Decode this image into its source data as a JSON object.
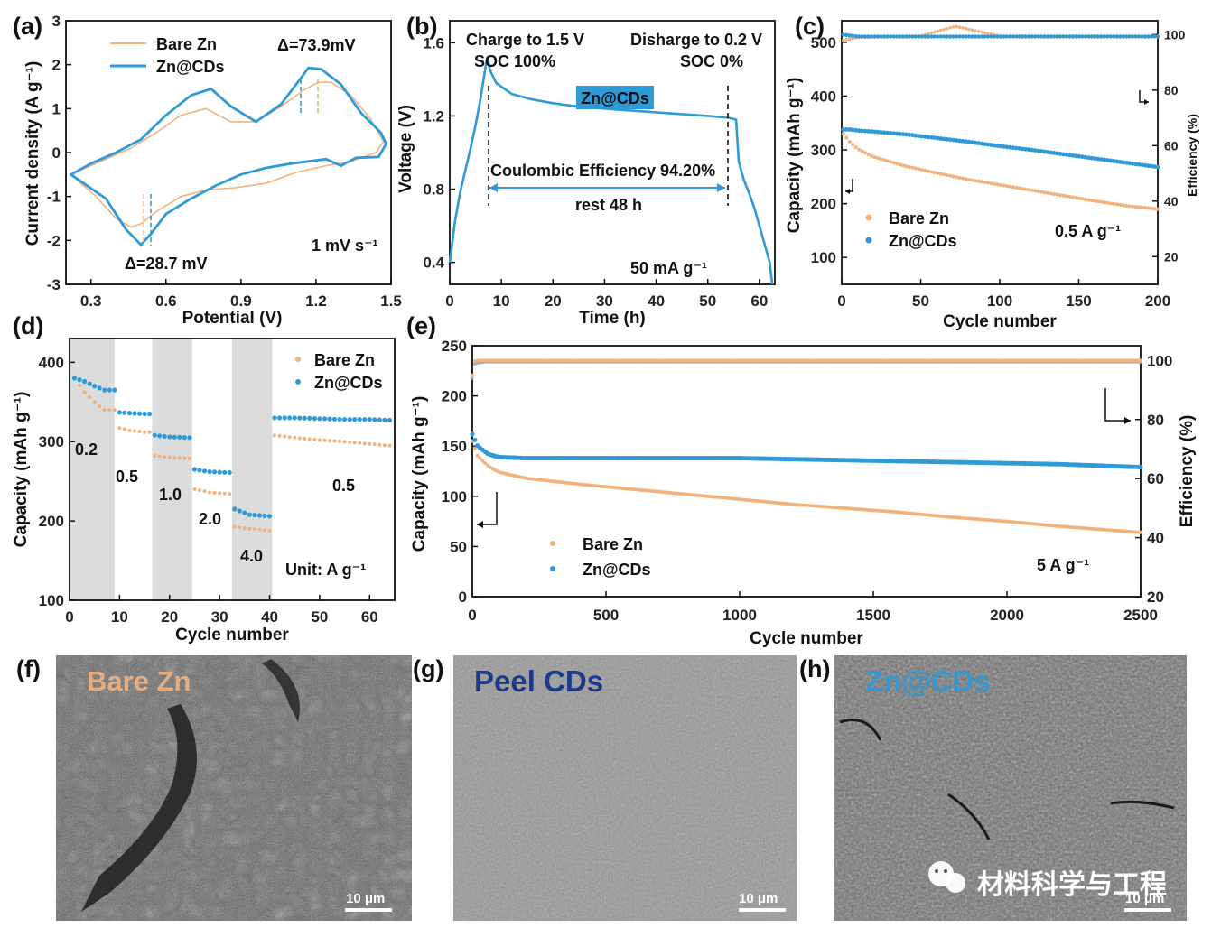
{
  "colors": {
    "bare": "#f2b27e",
    "cds": "#2f9ad8",
    "cds_dark": "#1f7fc0",
    "axis": "#111111",
    "shade": "#dcdcdc",
    "sem_dark": "#3d3d3d",
    "peel_title": "#1d3a8a"
  },
  "chart_data": [
    {
      "panel": "(a)",
      "type": "line",
      "xlabel": "Potential (V)",
      "ylabel": "Current density (A g⁻¹)",
      "xlim": [
        0.2,
        1.5
      ],
      "ylim": [
        -3,
        3
      ],
      "xticks": [
        "0.3",
        "0.6",
        "0.9",
        "1.2",
        "1.5"
      ],
      "yticks": [
        "3",
        "2",
        "1",
        "0",
        "-1",
        "-2",
        "-3"
      ],
      "legend": [
        "Bare Zn",
        "Zn@CDs"
      ],
      "annotations": [
        "Δ=73.9mV",
        "Δ=28.7 mV",
        "1 mV s⁻¹"
      ],
      "series": [
        {
          "name": "Bare Zn",
          "x": [
            0.22,
            0.28,
            0.36,
            0.46,
            0.56,
            0.66,
            0.76,
            0.86,
            0.96,
            1.06,
            1.16,
            1.21,
            1.26,
            1.34,
            1.42,
            1.47,
            1.44,
            1.34,
            1.24,
            1.12,
            1.0,
            0.88,
            0.76,
            0.66,
            0.56,
            0.5,
            0.46,
            0.4,
            0.32,
            0.22
          ],
          "y": [
            -0.5,
            -0.35,
            -0.15,
            0.1,
            0.45,
            0.85,
            1.0,
            0.7,
            0.7,
            1.05,
            1.45,
            1.6,
            1.6,
            1.3,
            0.75,
            0.25,
            0.0,
            -0.2,
            -0.3,
            -0.45,
            -0.7,
            -0.8,
            -0.85,
            -1.0,
            -1.35,
            -1.62,
            -1.7,
            -1.5,
            -1.0,
            -0.5
          ]
        },
        {
          "name": "Zn@CDs",
          "x": [
            0.22,
            0.3,
            0.4,
            0.5,
            0.6,
            0.7,
            0.78,
            0.86,
            0.96,
            1.06,
            1.14,
            1.17,
            1.22,
            1.3,
            1.38,
            1.46,
            1.48,
            1.45,
            1.36,
            1.3,
            1.24,
            1.1,
            1.0,
            0.9,
            0.8,
            0.7,
            0.6,
            0.54,
            0.5,
            0.44,
            0.36,
            0.22
          ],
          "y": [
            -0.5,
            -0.25,
            0.0,
            0.3,
            0.85,
            1.3,
            1.45,
            1.05,
            0.7,
            1.1,
            1.7,
            1.93,
            1.9,
            1.55,
            0.9,
            0.45,
            0.2,
            -0.1,
            -0.12,
            -0.3,
            -0.15,
            -0.25,
            -0.35,
            -0.5,
            -0.75,
            -1.05,
            -1.4,
            -1.85,
            -2.1,
            -1.75,
            -1.05,
            -0.5
          ]
        }
      ]
    },
    {
      "panel": "(b)",
      "type": "line",
      "xlabel": "Time (h)",
      "ylabel": "Voltage (V)",
      "xlim": [
        0,
        63
      ],
      "ylim": [
        0.28,
        1.72
      ],
      "xticks": [
        "0",
        "10",
        "20",
        "30",
        "40",
        "50",
        "60"
      ],
      "yticks": [
        "1.6",
        "1.2",
        "0.8",
        "0.4"
      ],
      "annotations": [
        "Charge to 1.5 V",
        "SOC 100%",
        "Disharge to 0.2 V",
        "SOC 0%",
        "Coulombic Efficiency 94.20%",
        "rest 48 h",
        "50 mA g⁻¹"
      ],
      "label_box": "Zn@CDs",
      "series": [
        {
          "name": "Zn@CDs",
          "x": [
            0,
            1,
            2,
            3,
            4,
            5,
            6,
            7,
            7.3,
            7.8,
            9,
            12,
            16,
            20,
            25,
            30,
            35,
            40,
            45,
            50,
            54,
            55.5,
            56,
            57,
            58,
            59,
            60,
            61,
            62,
            62.5
          ],
          "y": [
            0.4,
            0.62,
            0.78,
            0.9,
            1.02,
            1.15,
            1.3,
            1.48,
            1.52,
            1.45,
            1.38,
            1.32,
            1.29,
            1.27,
            1.25,
            1.24,
            1.23,
            1.22,
            1.21,
            1.2,
            1.19,
            1.18,
            0.95,
            0.85,
            0.78,
            0.7,
            0.6,
            0.5,
            0.4,
            0.28
          ]
        }
      ]
    },
    {
      "panel": "(c)",
      "type": "scatter",
      "xlabel": "Cycle number",
      "ylabel": "Capacity (mAh g⁻¹)",
      "y2label": "Efficiency (%)",
      "xlim": [
        0,
        200
      ],
      "ylim": [
        50,
        540
      ],
      "y2lim": [
        10,
        105
      ],
      "xticks": [
        "0",
        "50",
        "100",
        "150",
        "200"
      ],
      "yticks": [
        "500",
        "400",
        "300",
        "200",
        "100"
      ],
      "y2ticks": [
        "100",
        "80",
        "60",
        "40",
        "20"
      ],
      "legend": [
        "Bare Zn",
        "Zn@CDs"
      ],
      "annotations": [
        "0.5 A g⁻¹"
      ],
      "series": [
        {
          "name": "Bare Zn capacity",
          "x": [
            1,
            5,
            10,
            20,
            40,
            60,
            80,
            100,
            120,
            140,
            160,
            180,
            200
          ],
          "y": [
            330,
            315,
            302,
            287,
            270,
            257,
            245,
            235,
            225,
            215,
            205,
            196,
            190
          ]
        },
        {
          "name": "Zn@CDs capacity",
          "x": [
            1,
            5,
            10,
            20,
            40,
            60,
            80,
            100,
            120,
            140,
            160,
            180,
            200
          ],
          "y": [
            338,
            338,
            336,
            334,
            329,
            322,
            315,
            307,
            300,
            292,
            284,
            276,
            268
          ]
        },
        {
          "name": "Bare Zn efficiency",
          "x": [
            1,
            10,
            50,
            72,
            100,
            150,
            200
          ],
          "y": [
            98,
            99,
            99.5,
            103,
            99.5,
            99.5,
            99.5
          ]
        },
        {
          "name": "Zn@CDs efficiency",
          "x": [
            1,
            10,
            50,
            100,
            150,
            200
          ],
          "y": [
            100,
            99.3,
            99.3,
            99.3,
            99.3,
            99.3
          ]
        }
      ]
    },
    {
      "panel": "(d)",
      "type": "scatter",
      "xlabel": "Cycle number",
      "ylabel": "Capacity (mAh g⁻¹)",
      "xlim": [
        0,
        65
      ],
      "ylim": [
        100,
        430
      ],
      "xticks": [
        "0",
        "10",
        "20",
        "30",
        "40",
        "50",
        "60"
      ],
      "yticks": [
        "400",
        "300",
        "200",
        "100"
      ],
      "legend": [
        "Bare Zn",
        "Zn@CDs"
      ],
      "rate_labels": [
        "0.2",
        "0.5",
        "1.0",
        "2.0",
        "4.0",
        "0.5"
      ],
      "annotations": [
        "Unit: A g⁻¹"
      ],
      "series": [
        {
          "name": "Bare Zn",
          "x": [
            1,
            3,
            5,
            7,
            9,
            9.5,
            12,
            15,
            17,
            20,
            24,
            25,
            28,
            32,
            33,
            36,
            40,
            41,
            45,
            50,
            55,
            60,
            64
          ],
          "y": [
            380,
            362,
            350,
            340,
            335,
            318,
            314,
            312,
            282,
            280,
            279,
            240,
            236,
            234,
            193,
            190,
            188,
            308,
            305,
            302,
            300,
            297,
            295
          ]
        },
        {
          "name": "Zn@CDs",
          "x": [
            1,
            3,
            5,
            7,
            9,
            9.5,
            12,
            15,
            17,
            20,
            24,
            25,
            28,
            32,
            33,
            36,
            40,
            41,
            45,
            50,
            55,
            60,
            64
          ],
          "y": [
            380,
            376,
            370,
            365,
            362,
            337,
            336,
            335,
            308,
            306,
            305,
            265,
            262,
            261,
            215,
            208,
            206,
            330,
            330,
            329,
            328,
            328,
            327
          ]
        }
      ]
    },
    {
      "panel": "(e)",
      "type": "scatter",
      "xlabel": "Cycle number",
      "ylabel": "Capacity (mAh g⁻¹)",
      "y2label": "Efficiency (%)",
      "xlim": [
        0,
        2500
      ],
      "ylim": [
        0,
        250
      ],
      "y2lim": [
        20,
        105
      ],
      "xticks": [
        "0",
        "500",
        "1000",
        "1500",
        "2000",
        "2500"
      ],
      "yticks": [
        "250",
        "200",
        "150",
        "100",
        "50",
        "0"
      ],
      "y2ticks": [
        "100",
        "80",
        "60",
        "40",
        "20"
      ],
      "legend": [
        "Bare Zn",
        "Zn@CDs"
      ],
      "annotations": [
        "5 A g⁻¹"
      ],
      "series": [
        {
          "name": "Bare Zn capacity",
          "x": [
            0,
            20,
            60,
            100,
            200,
            400,
            600,
            800,
            1000,
            1200,
            1400,
            1600,
            1800,
            2000,
            2200,
            2400,
            2500
          ],
          "y": [
            155,
            140,
            130,
            124,
            118,
            112,
            107,
            102,
            97,
            92,
            88,
            84,
            79,
            75,
            70,
            66,
            64
          ]
        },
        {
          "name": "Zn@CDs capacity",
          "x": [
            0,
            20,
            60,
            100,
            200,
            400,
            600,
            800,
            1000,
            1200,
            1400,
            1600,
            1800,
            2000,
            2200,
            2400,
            2500
          ],
          "y": [
            162,
            150,
            142,
            139,
            138,
            138,
            138,
            138,
            138,
            137,
            136,
            135,
            134,
            133,
            132,
            130,
            129
          ]
        },
        {
          "name": "Bare Zn efficiency",
          "x": [
            0,
            10,
            50,
            500,
            1000,
            1500,
            2000,
            2500
          ],
          "y": [
            95,
            100,
            100,
            100,
            100,
            100,
            100,
            100
          ]
        },
        {
          "name": "Zn@CDs efficiency",
          "x": [
            0,
            10,
            50,
            500,
            1000,
            1500,
            2000,
            2500
          ],
          "y": [
            94,
            99,
            99.5,
            99.5,
            99.5,
            99.5,
            99.5,
            99.5
          ]
        }
      ]
    }
  ],
  "sem": [
    {
      "panel": "(f)",
      "title": "Bare Zn",
      "scale": "10 μm"
    },
    {
      "panel": "(g)",
      "title": "Peel CDs",
      "scale": "10 μm"
    },
    {
      "panel": "(h)",
      "title": "Zn@CDs",
      "scale": "10 μm"
    }
  ],
  "watermark": "材料科学与工程"
}
